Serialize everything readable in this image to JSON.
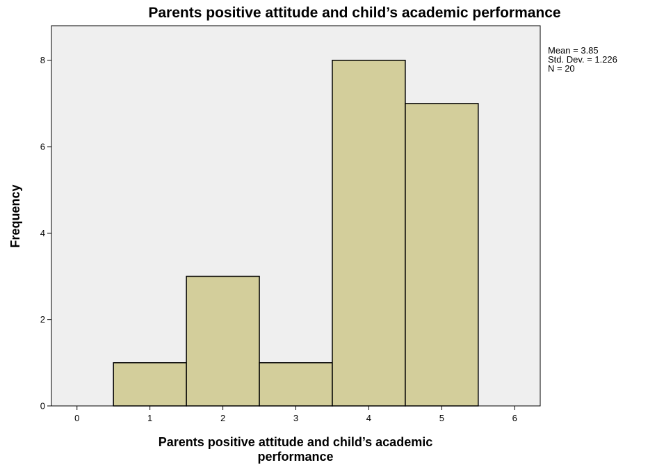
{
  "chart_data": {
    "type": "bar",
    "subtype": "histogram",
    "title": "Parents positive attitude and child’s academic performance",
    "xlabel_lines": [
      "Parents positive attitude and child’s academic",
      "performance"
    ],
    "ylabel": "Frequency",
    "x_ticks": [
      "0",
      "1",
      "2",
      "3",
      "4",
      "5",
      "6"
    ],
    "y_ticks": [
      "0",
      "2",
      "4",
      "6",
      "8"
    ],
    "xlim": [
      -0.35,
      6.35
    ],
    "ylim": [
      0,
      8.8
    ],
    "categories": [
      "1",
      "2",
      "3",
      "4",
      "5"
    ],
    "values": [
      1,
      3,
      1,
      8,
      7
    ],
    "bins": [
      {
        "center": 1,
        "start": 0.5,
        "end": 1.5,
        "count": 1
      },
      {
        "center": 2,
        "start": 1.5,
        "end": 2.5,
        "count": 3
      },
      {
        "center": 3,
        "start": 2.5,
        "end": 3.5,
        "count": 1
      },
      {
        "center": 4,
        "start": 3.5,
        "end": 4.5,
        "count": 8
      },
      {
        "center": 5,
        "start": 4.5,
        "end": 5.5,
        "count": 7
      }
    ],
    "stats": {
      "mean": "Mean = 3.85",
      "std_dev": "Std. Dev. = 1.226",
      "n": "N = 20"
    },
    "grid": false,
    "colors": {
      "bar_fill": "#d3ce9b",
      "bar_stroke": "#000000",
      "plot_background": "#efefef",
      "page_background": "#ffffff"
    }
  }
}
